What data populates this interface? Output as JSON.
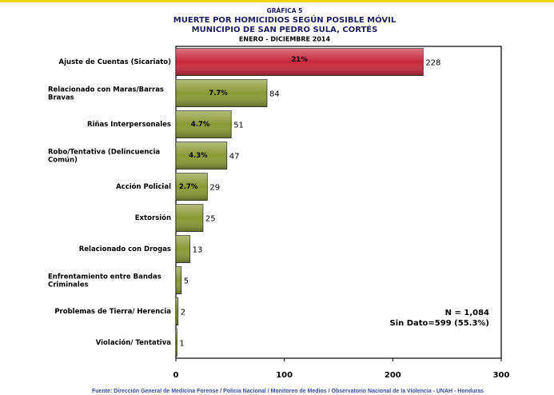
{
  "chart_data": {
    "type": "barh",
    "supertitle": "GRÁFICA 5",
    "title": "MUERTE POR HOMICIDIOS SEGÚN POSIBLE MÓVIL",
    "subtitle": "MUNICIPIO DE SAN PEDRO SULA, CORTÉS",
    "period": "ENERO - DICIEMBRE 2014",
    "categories": [
      "Ajuste de Cuentas (Sicariato)",
      "Relacionado con Maras/Barras Bravas",
      "Riñas Interpersonales",
      "Robo/Tentativa (Delincuencia Común)",
      "Acción Policial",
      "Extorsión",
      "Relacionado con Drogas",
      "Enfrentamiento entre Bandas Criminales",
      "Problemas de Tierra/ Herencia",
      "Violación/ Tentativa"
    ],
    "values": [
      228,
      84,
      51,
      47,
      29,
      25,
      13,
      5,
      2,
      1
    ],
    "percent_labels": [
      "21%",
      "7.7%",
      "4.7%",
      "4.3%",
      "2.7%",
      null,
      null,
      null,
      null,
      null
    ],
    "colors": [
      "#c8283c",
      "#8a9a34",
      "#8a9a34",
      "#8a9a34",
      "#8a9a34",
      "#8a9a34",
      "#8a9a34",
      "#8a9a34",
      "#8a9a34",
      "#8a9a34"
    ],
    "xlim": [
      0,
      300
    ],
    "xticks": [
      0,
      100,
      200,
      300
    ],
    "grid": false,
    "annotations": [
      "N = 1,084",
      "Sin Dato=599 (55.3%)"
    ],
    "source": "Fuente: Dirección General de Medicina Forense / Policía Nacional / Monitoreo de Medios / Observatorio Nacional de la Violencia - UNAH - Honduras"
  }
}
